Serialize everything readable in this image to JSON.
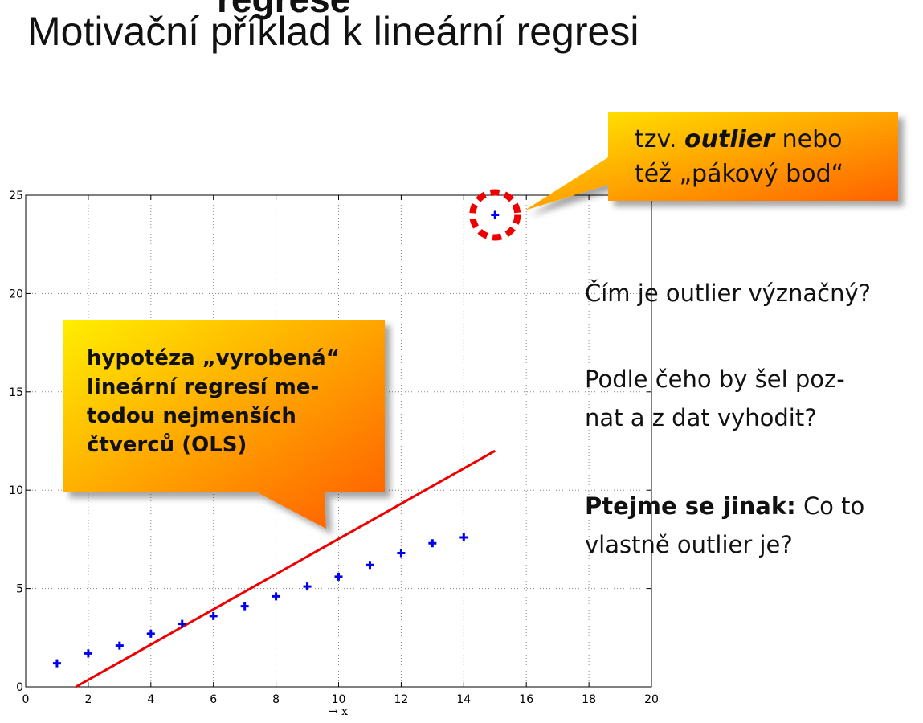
{
  "slide": {
    "title_cut": "regrese",
    "title": "Motivační příklad k lineární regresi"
  },
  "callouts": {
    "outlier_line1_plain": "tzv.",
    "outlier_line1_em": "outlier",
    "outlier_line1_rest": "nebo",
    "outlier_line2": "též „pákový bod“",
    "ols_line1": "hypotéza „vyrobená“",
    "ols_line2": "lineární regresí me-",
    "ols_line3": "todou nejmenších",
    "ols_line4": "čtverců (OLS)"
  },
  "questions": {
    "q1": "Čím je outlier význačný?",
    "q2_line1": "Podle čeho by šel poz-",
    "q2_line2": "nat a z dat vyhodit?",
    "q3_bold": "Ptejme se jinak:",
    "q3_rest": "Co to",
    "q3_line2": "vlastně outlier je?"
  },
  "colors": {
    "points": "#0000ee",
    "line": "#ee0000",
    "highlight": "#ee0000",
    "callout_start": "#ffee00",
    "callout_end": "#ff5a00"
  },
  "chart_data": {
    "type": "scatter",
    "xlabel": "→ x",
    "ylabel": "",
    "xlim": [
      0,
      20
    ],
    "ylim": [
      0,
      25
    ],
    "xticks": [
      0,
      2,
      4,
      6,
      8,
      10,
      12,
      14,
      16,
      18,
      20
    ],
    "yticks": [
      0,
      5,
      10,
      15,
      20,
      25
    ],
    "grid": true,
    "points": [
      {
        "x": 1,
        "y": 1.2
      },
      {
        "x": 2,
        "y": 1.7
      },
      {
        "x": 3,
        "y": 2.1
      },
      {
        "x": 4,
        "y": 2.7
      },
      {
        "x": 5,
        "y": 3.2
      },
      {
        "x": 6,
        "y": 3.6
      },
      {
        "x": 7,
        "y": 4.1
      },
      {
        "x": 8,
        "y": 4.6
      },
      {
        "x": 9,
        "y": 5.1
      },
      {
        "x": 10,
        "y": 5.6
      },
      {
        "x": 11,
        "y": 6.2
      },
      {
        "x": 12,
        "y": 6.8
      },
      {
        "x": 13,
        "y": 7.3
      },
      {
        "x": 14,
        "y": 7.6
      },
      {
        "x": 15,
        "y": 24
      }
    ],
    "outlier": {
      "x": 15,
      "y": 24
    },
    "regression_line": {
      "x": [
        1.6,
        15
      ],
      "y": [
        0,
        12
      ]
    }
  }
}
